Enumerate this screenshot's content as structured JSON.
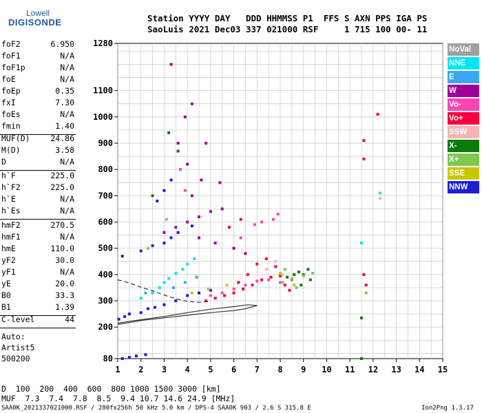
{
  "logo": {
    "top": "Lowell",
    "bottom": "DIGISONDE"
  },
  "header": {
    "line1": "Station YYYY DAY   DDD HHMMSS P1  FFS S AXN PPS IGA PS",
    "line2": "SaoLuis 2021 Dec03 337 021000 RSF     1 715 100 00- 11"
  },
  "params": {
    "group1": [
      {
        "name": "foF2",
        "value": "6.950"
      },
      {
        "name": "foF1",
        "value": "N/A"
      },
      {
        "name": "foF1p",
        "value": "N/A"
      },
      {
        "name": "foE",
        "value": "N/A"
      },
      {
        "name": "foEp",
        "value": "0.35"
      },
      {
        "name": "fxI",
        "value": "7.30"
      },
      {
        "name": "foEs",
        "value": "N/A"
      },
      {
        "name": "fmin",
        "value": "1.40"
      }
    ],
    "group2": [
      {
        "name": "MUF(D)",
        "value": "24.86"
      },
      {
        "name": "M(D)",
        "value": "3.58"
      },
      {
        "name": "D",
        "value": "N/A"
      }
    ],
    "group3": [
      {
        "name": "h`F",
        "value": "225.0"
      },
      {
        "name": "h`F2",
        "value": "225.0"
      },
      {
        "name": "h`E",
        "value": "N/A"
      },
      {
        "name": "h`Es",
        "value": "N/A"
      }
    ],
    "group4": [
      {
        "name": "hmF2",
        "value": "270.5"
      },
      {
        "name": "hmF1",
        "value": "N/A"
      },
      {
        "name": "hmE",
        "value": "110.0"
      },
      {
        "name": "yF2",
        "value": "30.0"
      },
      {
        "name": "yF1",
        "value": "N/A"
      },
      {
        "name": "yE",
        "value": "20.0"
      },
      {
        "name": "B0",
        "value": "33.3"
      },
      {
        "name": "B1",
        "value": "1.39"
      }
    ],
    "group5": [
      {
        "name": "C-level",
        "value": "44"
      }
    ]
  },
  "notes": {
    "auto": "Auto:",
    "artist": "Artist5",
    "version": "500200"
  },
  "legend": [
    {
      "label": "NoVal",
      "color": "#a0a0a0"
    },
    {
      "label": "NNE",
      "color": "#00e5f5"
    },
    {
      "label": "E",
      "color": "#3aa8f0"
    },
    {
      "label": "W",
      "color": "#a0009a"
    },
    {
      "label": "Vo-",
      "color": "#ff44b4"
    },
    {
      "label": "Vo+",
      "color": "#f5003c"
    },
    {
      "label": "SSW",
      "color": "#f5b4b4"
    },
    {
      "label": "X-",
      "color": "#0a7a0a"
    },
    {
      "label": "X+",
      "color": "#7ec850"
    },
    {
      "label": "SSE",
      "color": "#c8c800"
    },
    {
      "label": "NNW",
      "color": "#1e1ed2"
    }
  ],
  "chart_data": {
    "type": "scatter",
    "title": "",
    "xlabel": "",
    "ylabel": "",
    "xlim": [
      1,
      15
    ],
    "ylim": [
      80,
      1280
    ],
    "x_ticks": [
      1,
      2,
      3,
      4,
      5,
      6,
      7,
      8,
      9,
      10,
      11,
      12,
      13,
      14,
      15
    ],
    "y_ticks": [
      80,
      200,
      300,
      400,
      500,
      600,
      700,
      800,
      900,
      1000,
      1100,
      1280
    ],
    "grid": true,
    "series": [
      {
        "color": "#1e1ed2",
        "points": [
          [
            1.05,
            230
          ],
          [
            1.3,
            240
          ],
          [
            1.5,
            250
          ],
          [
            2.0,
            255
          ],
          [
            2.3,
            270
          ],
          [
            2.6,
            275
          ],
          [
            3.0,
            285
          ],
          [
            3.5,
            300
          ],
          [
            4.0,
            320
          ],
          [
            4.5,
            330
          ],
          [
            5.0,
            340
          ],
          [
            1.2,
            470
          ],
          [
            2.0,
            490
          ],
          [
            2.5,
            510
          ],
          [
            3.0,
            520
          ],
          [
            3.3,
            540
          ],
          [
            3.6,
            560
          ],
          [
            4.2,
            585
          ],
          [
            2.7,
            680
          ],
          [
            3.0,
            720
          ],
          [
            3.3,
            760
          ],
          [
            1.5,
            85
          ],
          [
            1.8,
            90
          ],
          [
            2.2,
            95
          ],
          [
            1.2,
            80
          ]
        ]
      },
      {
        "color": "#f5003c",
        "points": [
          [
            4.8,
            300
          ],
          [
            5.2,
            310
          ],
          [
            5.6,
            320
          ],
          [
            6.0,
            330
          ],
          [
            6.4,
            345
          ],
          [
            6.8,
            360
          ],
          [
            7.2,
            380
          ],
          [
            7.6,
            390
          ],
          [
            8.0,
            395
          ],
          [
            8.2,
            360
          ],
          [
            8.4,
            340
          ],
          [
            7.8,
            430
          ],
          [
            7.4,
            460
          ],
          [
            7.0,
            440
          ],
          [
            6.6,
            400
          ],
          [
            6.2,
            370
          ],
          [
            11.6,
            910
          ],
          [
            11.6,
            840
          ],
          [
            12.2,
            1010
          ],
          [
            11.6,
            400
          ],
          [
            11.7,
            360
          ],
          [
            5.8,
            580
          ],
          [
            6.3,
            610
          ]
        ]
      },
      {
        "color": "#ff44b4",
        "points": [
          [
            5.0,
            320
          ],
          [
            5.5,
            330
          ],
          [
            6.0,
            345
          ],
          [
            6.5,
            360
          ],
          [
            7.0,
            375
          ],
          [
            7.5,
            380
          ],
          [
            8.0,
            370
          ],
          [
            8.5,
            380
          ],
          [
            7.7,
            610
          ],
          [
            7.9,
            630
          ],
          [
            6.3,
            540
          ],
          [
            6.9,
            590
          ],
          [
            7.2,
            600
          ],
          [
            3.7,
            800
          ],
          [
            3.9,
            720
          ]
        ]
      },
      {
        "color": "#00e5f5",
        "points": [
          [
            3.0,
            370
          ],
          [
            3.2,
            385
          ],
          [
            3.5,
            405
          ],
          [
            2.8,
            350
          ],
          [
            2.5,
            330
          ],
          [
            2.0,
            310
          ],
          [
            11.5,
            520
          ],
          [
            4.3,
            460
          ],
          [
            4.0,
            440
          ],
          [
            3.8,
            420
          ],
          [
            12.3,
            710
          ]
        ]
      },
      {
        "color": "#0a7a0a",
        "points": [
          [
            8.3,
            390
          ],
          [
            8.6,
            400
          ],
          [
            8.8,
            410
          ],
          [
            9.0,
            400
          ],
          [
            9.2,
            420
          ],
          [
            8.9,
            360
          ],
          [
            9.3,
            380
          ],
          [
            11.5,
            235
          ],
          [
            11.5,
            80
          ],
          [
            3.2,
            940
          ],
          [
            3.6,
            870
          ],
          [
            2.5,
            700
          ]
        ]
      },
      {
        "color": "#7ec850",
        "points": [
          [
            8.1,
            370
          ],
          [
            8.5,
            385
          ],
          [
            9.0,
            395
          ],
          [
            9.4,
            405
          ],
          [
            8.7,
            350
          ],
          [
            8.2,
            420
          ],
          [
            11.7,
            330
          ],
          [
            2.3,
            500
          ],
          [
            3.1,
            610
          ]
        ]
      },
      {
        "color": "#a0009a",
        "points": [
          [
            3.0,
            560
          ],
          [
            3.5,
            580
          ],
          [
            4.0,
            600
          ],
          [
            4.5,
            620
          ],
          [
            5.0,
            640
          ],
          [
            5.5,
            650
          ],
          [
            4.2,
            700
          ],
          [
            4.6,
            760
          ],
          [
            4.0,
            820
          ],
          [
            3.6,
            900
          ],
          [
            4.2,
            1050
          ],
          [
            3.9,
            1000
          ],
          [
            4.8,
            900
          ],
          [
            5.4,
            750
          ],
          [
            4.5,
            540
          ],
          [
            5.2,
            520
          ],
          [
            6.0,
            500
          ],
          [
            6.5,
            480
          ],
          [
            3.3,
            1200
          ]
        ]
      },
      {
        "color": "#c8c800",
        "points": [
          [
            4.2,
            330
          ],
          [
            4.9,
            345
          ],
          [
            5.7,
            360
          ],
          [
            8.0,
            405
          ],
          [
            8.6,
            360
          ]
        ]
      },
      {
        "color": "#f5b4b4",
        "points": [
          [
            7.4,
            420
          ],
          [
            7.8,
            450
          ],
          [
            8.1,
            400
          ],
          [
            12.3,
            690
          ]
        ]
      },
      {
        "color": "#3aa8f0",
        "points": [
          [
            3.4,
            350
          ],
          [
            3.9,
            370
          ],
          [
            4.4,
            390
          ],
          [
            2.2,
            330
          ]
        ]
      }
    ],
    "curves": [
      {
        "color": "#333333",
        "style": "solid",
        "points": [
          [
            1.0,
            215
          ],
          [
            1.5,
            222
          ],
          [
            2.0,
            228
          ],
          [
            3.0,
            240
          ],
          [
            4.0,
            255
          ],
          [
            5.0,
            268
          ],
          [
            6.0,
            278
          ],
          [
            6.6,
            285
          ],
          [
            7.0,
            282
          ],
          [
            6.5,
            270
          ],
          [
            6.0,
            263
          ],
          [
            5.0,
            255
          ],
          [
            4.0,
            245
          ],
          [
            3.0,
            235
          ],
          [
            2.0,
            225
          ],
          [
            1.0,
            210
          ]
        ]
      },
      {
        "color": "#333333",
        "style": "dashed",
        "points": [
          [
            1.0,
            380
          ],
          [
            1.5,
            368
          ],
          [
            2.0,
            352
          ],
          [
            2.5,
            338
          ],
          [
            3.0,
            322
          ],
          [
            3.5,
            308
          ],
          [
            4.0,
            298
          ],
          [
            4.5,
            294
          ],
          [
            5.0,
            298
          ]
        ]
      }
    ]
  },
  "footer": {
    "d_label": "D",
    "d_values": "  100  200  400  600  800 1000 1500 3000 [km]",
    "muf_label": "MUF",
    "muf_values": "  7.3  7.4  7.8  8.5  9.4 10.7 14.6 24.9 [MHz]",
    "file_info": "SAA0K_2021337021000.RSF / 280fx256h 50 kHz 5.0 km / DPS-4 SAA0K 903 / 2.6 S 315.8 E",
    "program": "Ion2Png 1.3.17"
  }
}
